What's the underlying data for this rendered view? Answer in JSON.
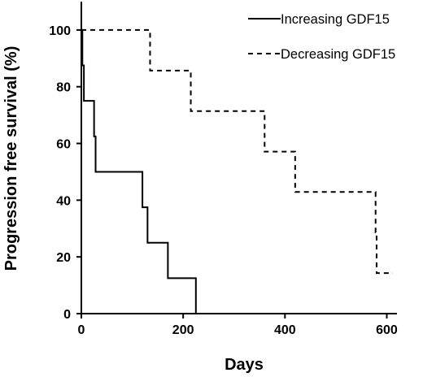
{
  "chart_data": {
    "type": "line",
    "step": true,
    "xlabel": "Days",
    "ylabel": "Progression free survival (%)",
    "xlim": [
      0,
      620
    ],
    "ylim": [
      0,
      110
    ],
    "xticks": [
      0,
      200,
      400,
      600
    ],
    "yticks": [
      0,
      20,
      40,
      60,
      80,
      100
    ],
    "legend_position": "top-right",
    "grid": false,
    "series": [
      {
        "name": "Increasing GDF15",
        "line_style": "solid",
        "color": "#000000",
        "x": [
          0,
          2,
          5,
          25,
          28,
          120,
          125,
          130,
          170,
          225,
          620
        ],
        "y": [
          100,
          87.5,
          75,
          62.5,
          50,
          37.5,
          37.5,
          25,
          12.5,
          0,
          0
        ]
      },
      {
        "name": "Decreasing GDF15",
        "line_style": "dashed",
        "color": "#000000",
        "x": [
          0,
          135,
          215,
          360,
          420,
          578,
          580,
          612
        ],
        "y": [
          100,
          85.7,
          71.4,
          57.1,
          42.9,
          28.6,
          14.3,
          14.3
        ]
      }
    ]
  }
}
